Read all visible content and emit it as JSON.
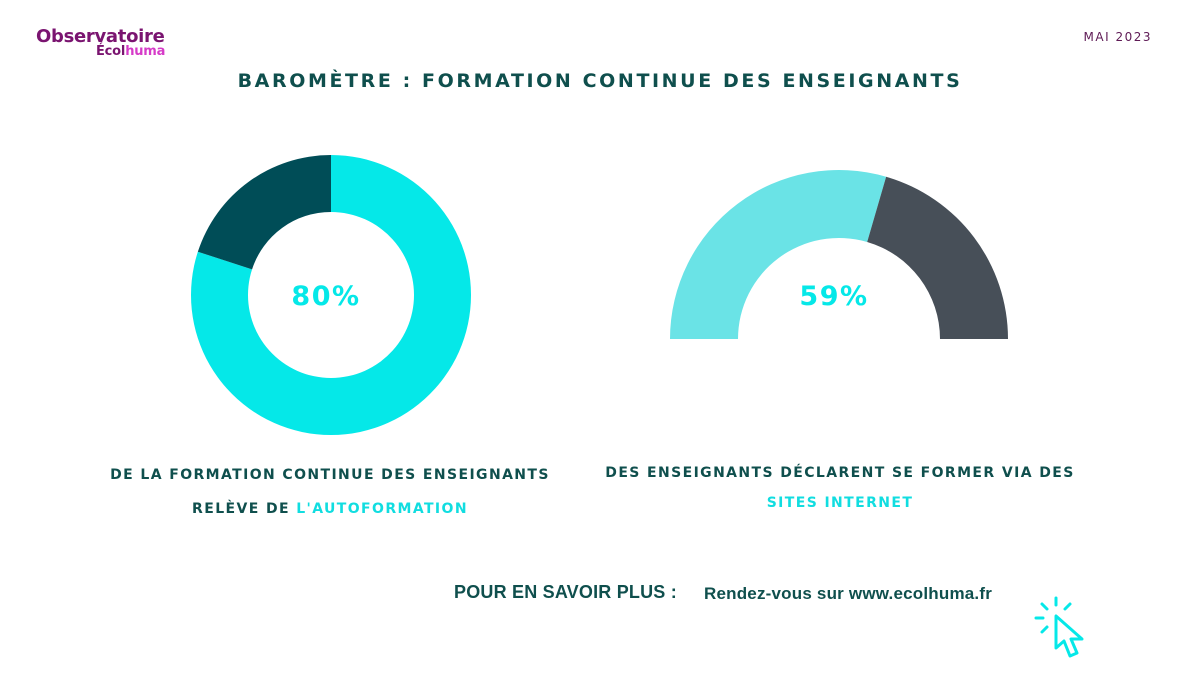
{
  "logo": {
    "top": "Observatoire",
    "bottom_a": "Écol",
    "bottom_b": "huma",
    "icon": "magnifier-q-icon"
  },
  "date": "MAI 2023",
  "title": "BAROMÈTRE : FORMATION CONTINUE DES ENSEIGNANTS",
  "colors": {
    "cyan": "#05e8e8",
    "dark_teal": "#004d57",
    "light_cyan": "#6ae3e6",
    "slate": "#474f58",
    "text_teal": "#0f4f4d",
    "purple": "#7a1470"
  },
  "chart_data": [
    {
      "type": "pie",
      "style": "donut",
      "center_label": "80%",
      "values": [
        80,
        20
      ],
      "colors": [
        "#05e8e8",
        "#004d57"
      ],
      "caption_line1": "DE LA FORMATION CONTINUE DES ENSEIGNANTS",
      "caption_line2_prefix": "RELÈVE DE ",
      "caption_line2_highlight": "L'AUTOFORMATION"
    },
    {
      "type": "pie",
      "style": "semi-donut",
      "center_label": "59%",
      "values": [
        59,
        41
      ],
      "colors": [
        "#6ae3e6",
        "#474f58"
      ],
      "caption_line1": "DES ENSEIGNANTS DÉCLARENT SE FORMER VIA DES",
      "caption_line2_highlight": "SITES INTERNET"
    }
  ],
  "footer": {
    "more_label": "POUR EN SAVOIR PLUS :",
    "link_text": "Rendez-vous sur www.ecolhuma.fr",
    "cursor_icon": "click-cursor-icon"
  }
}
